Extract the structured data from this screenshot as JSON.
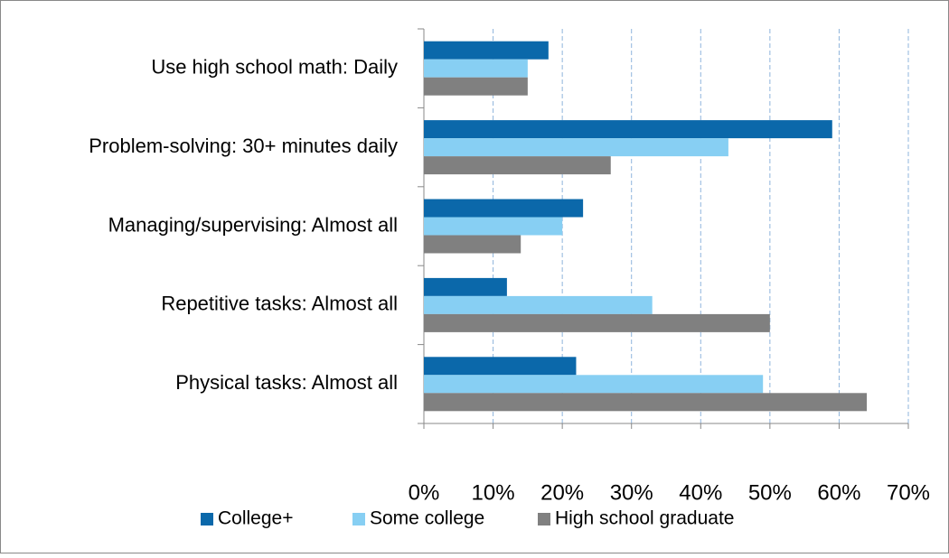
{
  "chart_data": {
    "type": "bar",
    "orientation": "horizontal",
    "categories": [
      "Use high school math: Daily",
      "Problem-solving: 30+ minutes daily",
      "Managing/supervising: Almost all",
      "Repetitive tasks: Almost all",
      "Physical tasks: Almost all"
    ],
    "series": [
      {
        "name": "College+",
        "color": "#0b68aa",
        "values": [
          18,
          59,
          23,
          12,
          22
        ]
      },
      {
        "name": "Some college",
        "color": "#87cff3",
        "values": [
          15,
          44,
          20,
          33,
          49
        ]
      },
      {
        "name": "High school graduate",
        "color": "#808080",
        "values": [
          15,
          27,
          14,
          50,
          64
        ]
      }
    ],
    "xlim": [
      0,
      70
    ],
    "xticks": [
      {
        "value": 0,
        "label": "0%"
      },
      {
        "value": 10,
        "label": "10%"
      },
      {
        "value": 20,
        "label": "20%"
      },
      {
        "value": 30,
        "label": "30%"
      },
      {
        "value": 40,
        "label": "40%"
      },
      {
        "value": 50,
        "label": "50%"
      },
      {
        "value": 60,
        "label": "60%"
      },
      {
        "value": 70,
        "label": "70%"
      }
    ],
    "grid": true,
    "legend": "bottom"
  }
}
